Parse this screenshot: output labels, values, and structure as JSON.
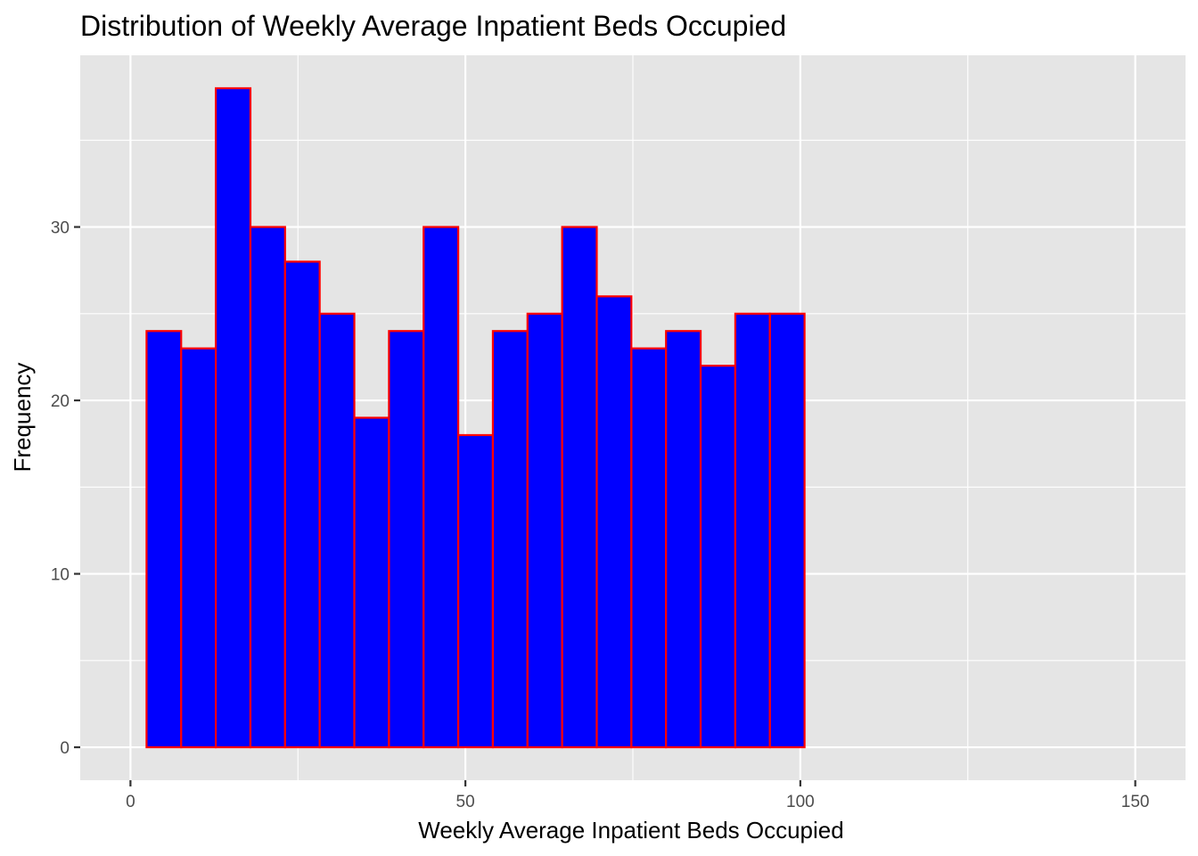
{
  "chart_data": {
    "type": "bar",
    "subtype": "histogram",
    "title": "Distribution of Weekly Average Inpatient Beds Occupied",
    "xlabel": "Weekly Average Inpatient Beds Occupied",
    "ylabel": "Frequency",
    "xlim": [
      -7.5,
      157.5
    ],
    "ylim": [
      -1.9,
      39.9
    ],
    "xticks": [
      0,
      50,
      100,
      150
    ],
    "xtick_labels": [
      "0",
      "50",
      "100",
      "150"
    ],
    "yticks": [
      0,
      10,
      20,
      30
    ],
    "ytick_labels": [
      "0",
      "10",
      "20",
      "30"
    ],
    "x_minor_gridlines": [
      25,
      75,
      125
    ],
    "y_minor_gridlines": [
      5,
      15,
      25,
      35
    ],
    "grid": true,
    "legend": "none",
    "bin_width": 5.17,
    "bin_start": 2.4,
    "counts": [
      24,
      23,
      38,
      30,
      28,
      25,
      19,
      24,
      30,
      18,
      24,
      25,
      30,
      26,
      23,
      24,
      22,
      25,
      25,
      0,
      0,
      0,
      0,
      0,
      0,
      0,
      0,
      0,
      0,
      0
    ],
    "colors": {
      "panel_background": "#E5E5E5",
      "gridline": "#FFFFFF",
      "bar_fill": "#0000FF",
      "bar_outline": "#FF0000",
      "tick_mark": "#333333",
      "tick_label": "#4D4D4D",
      "text": "#000000"
    }
  }
}
